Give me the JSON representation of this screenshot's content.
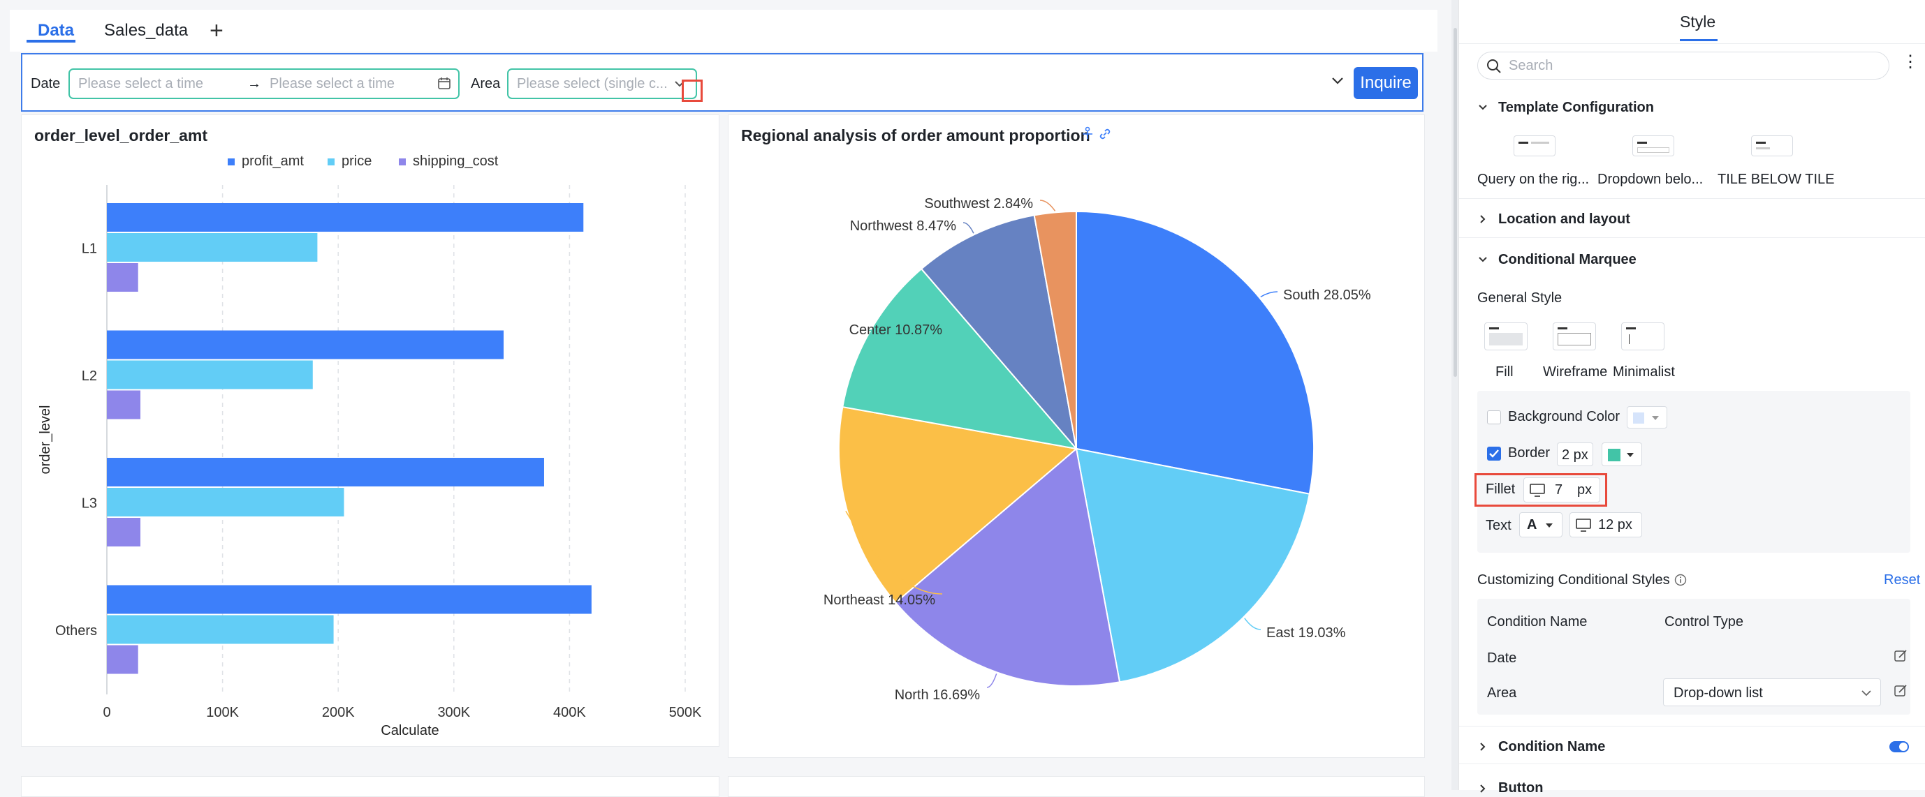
{
  "tabs": {
    "data": "Data",
    "sales": "Sales_data",
    "add": "+"
  },
  "filter": {
    "date_label": "Date",
    "date_start_placeholder": "Please select a time",
    "date_arrow": "→",
    "date_end_placeholder": "Please select a time",
    "area_label": "Area",
    "area_placeholder": "Please select (single c...",
    "inquire": "Inquire"
  },
  "bar_panel": {
    "title": "order_level_order_amt"
  },
  "pie_panel": {
    "title": "Regional analysis of order amount proportion"
  },
  "chart_data": [
    {
      "type": "bar",
      "orientation": "horizontal",
      "title": "order_level_order_amt",
      "xlabel": "Calculate",
      "ylabel": "order_level",
      "categories": [
        "L1",
        "L2",
        "L3",
        "Others"
      ],
      "series": [
        {
          "name": "profit_amt",
          "color": "#3d7ffa",
          "values": [
            412000,
            343000,
            378000,
            419000
          ]
        },
        {
          "name": "price",
          "color": "#62cdf6",
          "values": [
            182000,
            178000,
            205000,
            196000
          ]
        },
        {
          "name": "shipping_cost",
          "color": "#8e86ea",
          "values": [
            27000,
            29000,
            29000,
            27000
          ]
        }
      ],
      "xlim": [
        0,
        500000
      ],
      "xticks": [
        "0",
        "100K",
        "200K",
        "300K",
        "400K",
        "500K"
      ],
      "legend": "top-center",
      "grid": "vertical dashed"
    },
    {
      "type": "pie",
      "title": "Regional analysis of order amount proportion",
      "slices": [
        {
          "label": "South",
          "value": 28.05,
          "text": "South 28.05%",
          "color": "#3d7ffa"
        },
        {
          "label": "East",
          "value": 19.03,
          "text": "East 19.03%",
          "color": "#62cdf6"
        },
        {
          "label": "North",
          "value": 16.69,
          "text": "North 16.69%",
          "color": "#8e86ea"
        },
        {
          "label": "Northeast",
          "value": 14.05,
          "text": "Northeast 14.05%",
          "color": "#fbbf47"
        },
        {
          "label": "Center",
          "value": 10.87,
          "text": "Center 10.87%",
          "color": "#52d1b8"
        },
        {
          "label": "Northwest",
          "value": 8.47,
          "text": "Northwest 8.47%",
          "color": "#6682c2"
        },
        {
          "label": "Southwest",
          "value": 2.84,
          "text": "Southwest 2.84%",
          "color": "#e8935f"
        }
      ]
    }
  ],
  "style_panel": {
    "title": "Style",
    "search_placeholder": "Search",
    "more": "⋮",
    "sections": {
      "template": "Template Configuration",
      "location": "Location and layout",
      "marquee": "Conditional Marquee",
      "condition_name": "Condition Name",
      "button": "Button"
    },
    "templates": [
      "Query on the rig...",
      "Dropdown belo...",
      "TILE BELOW TILE"
    ],
    "general_style": "General Style",
    "styles": [
      "Fill",
      "Wireframe",
      "Minimalist"
    ],
    "background_color": "Background Color",
    "border": "Border",
    "border_value": "2 px",
    "fillet": "Fillet",
    "fillet_value": "7",
    "fillet_unit": "px",
    "text": "Text",
    "text_font_icon": "A",
    "text_size": "12 px",
    "customizing": "Customizing Conditional Styles",
    "reset": "Reset",
    "table_headers": [
      "Condition Name",
      "Control Type"
    ],
    "rows": [
      {
        "name": "Date",
        "control": ""
      },
      {
        "name": "Area",
        "control": "Drop-down list"
      }
    ],
    "colors": {
      "accent": "#2b6fe8",
      "border_swatch": "#42c4a7",
      "bg_swatch": "#d6e4fb"
    }
  }
}
